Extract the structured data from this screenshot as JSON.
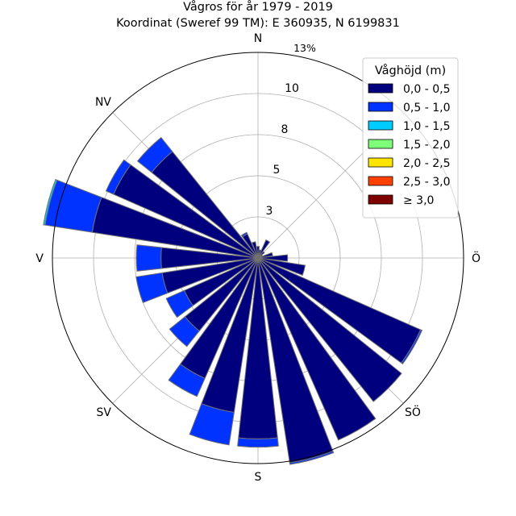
{
  "chart_data": {
    "type": "wind-rose",
    "title": "Vågros för år 1979 - 2019",
    "subtitle": "Koordinat (Sweref 99 TM): E 360935, N 6199831",
    "directions": [
      "N",
      "Ö",
      "S",
      "V"
    ],
    "directions_diagonal": [
      "NV",
      "SV",
      "SÖ"
    ],
    "radial_ticks": [
      "3",
      "5",
      "8",
      "10"
    ],
    "radial_tick_values": [
      2.5,
      5,
      7.5,
      10
    ],
    "radial_max_label": "13%",
    "rlim": [
      0,
      12.5
    ],
    "grid": true,
    "legend": {
      "title": "Våghöjd (m)",
      "placement": "top-right",
      "entries": [
        "0,0 - 0,5",
        "0,5 - 1,0",
        "1,0 - 1,5",
        "1,5 - 2,0",
        "2,0 - 2,5",
        "2,5 - 3,0",
        "≥ 3,0"
      ],
      "colors": [
        "#00007f",
        "#0033ff",
        "#00ccff",
        "#7dff7a",
        "#ffe500",
        "#ff4000",
        "#7f0000"
      ]
    },
    "sector_angles_deg": [
      0,
      15,
      30,
      45,
      60,
      75,
      90,
      105,
      120,
      135,
      150,
      165,
      180,
      195,
      210,
      225,
      240,
      255,
      270,
      285,
      300,
      315,
      330,
      345
    ],
    "sectors": [
      [
        0.7,
        0.0,
        0.0,
        0.0,
        0.0,
        0.0,
        0.0
      ],
      [
        0.5,
        0.0,
        0.0,
        0.0,
        0.0,
        0.0,
        0.0
      ],
      [
        1.2,
        0.0,
        0.0,
        0.0,
        0.0,
        0.0,
        0.0
      ],
      [
        0.5,
        0.0,
        0.0,
        0.0,
        0.0,
        0.0,
        0.0
      ],
      [
        0.3,
        0.0,
        0.0,
        0.0,
        0.0,
        0.0,
        0.0
      ],
      [
        0.9,
        0.0,
        0.0,
        0.0,
        0.0,
        0.0,
        0.0
      ],
      [
        1.8,
        0.0,
        0.0,
        0.0,
        0.0,
        0.0,
        0.0
      ],
      [
        2.9,
        0.0,
        0.0,
        0.0,
        0.0,
        0.0,
        0.0
      ],
      [
        10.8,
        0.1,
        0.0,
        0.0,
        0.0,
        0.0,
        0.0
      ],
      [
        11.2,
        0.0,
        0.0,
        0.0,
        0.0,
        0.0,
        0.0
      ],
      [
        12.1,
        0.0,
        0.0,
        0.0,
        0.0,
        0.0,
        0.0
      ],
      [
        12.6,
        0.1,
        0.0,
        0.0,
        0.0,
        0.0,
        0.0
      ],
      [
        11.0,
        0.5,
        0.0,
        0.0,
        0.0,
        0.0,
        0.0
      ],
      [
        9.5,
        2.0,
        0.0,
        0.0,
        0.0,
        0.0,
        0.0
      ],
      [
        8.0,
        1.2,
        0.0,
        0.0,
        0.0,
        0.0,
        0.0
      ],
      [
        5.7,
        1.2,
        0.0,
        0.0,
        0.0,
        0.0,
        0.0
      ],
      [
        4.9,
        1.2,
        0.0,
        0.0,
        0.0,
        0.0,
        0.0
      ],
      [
        5.9,
        1.6,
        0.0,
        0.0,
        0.0,
        0.0,
        0.0
      ],
      [
        5.9,
        1.5,
        0.0,
        0.0,
        0.0,
        0.0,
        0.0
      ],
      [
        10.2,
        2.9,
        0.1,
        0.0,
        0.0,
        0.0,
        0.0
      ],
      [
        9.6,
        0.5,
        0.0,
        0.0,
        0.0,
        0.0,
        0.0
      ],
      [
        8.3,
        1.1,
        0.0,
        0.0,
        0.0,
        0.0,
        0.0
      ],
      [
        1.6,
        0.1,
        0.0,
        0.0,
        0.0,
        0.0,
        0.0
      ],
      [
        1.0,
        0.0,
        0.0,
        0.0,
        0.0,
        0.0,
        0.0
      ]
    ]
  }
}
